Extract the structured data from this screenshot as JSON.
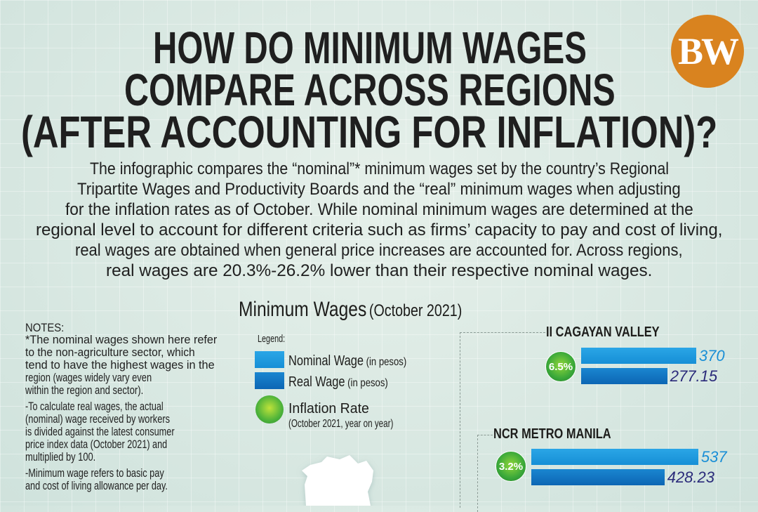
{
  "title_lines": [
    "HOW DO MINIMUM WAGES",
    "COMPARE ACROSS REGIONS",
    "(AFTER ACCOUNTING FOR INFLATION)?"
  ],
  "logo_text": "BW",
  "intro_lines": [
    "The infographic compares the “nominal”* minimum wages set by the country’s Regional",
    "Tripartite Wages and Productivity Boards and the “real” minimum wages when adjusting",
    "for the inflation rates as of October. While nominal minimum wages are determined at the",
    "regional level to account for different criteria such as firms’ capacity to pay and cost of living,",
    "real wages are obtained when general price increases are accounted for. Across regions,",
    "real wages are 20.3%-26.2% lower than their respective nominal wages."
  ],
  "notes": {
    "heading": "NOTES:",
    "lines": [
      "*The nominal wages shown here refer",
      "to the non-agriculture sector, which",
      "tend to have the highest wages in the",
      "region (wages widely vary even",
      "within the region and sector).",
      "-To calculate real wages, the actual",
      "(nominal) wage received by workers",
      "is divided against the latest consumer",
      "price index data (October 2021) and",
      "multiplied by 100.",
      "-Minimum wage refers to basic pay",
      "and cost of living allowance per day."
    ]
  },
  "chart_data": {
    "type": "bar",
    "title": "Minimum Wages",
    "subtitle": "(October 2021)",
    "legend": {
      "heading": "Legend:",
      "nominal": {
        "label": "Nominal Wage",
        "unit": "(in pesos)",
        "color": "#1e9be0"
      },
      "real": {
        "label": "Real Wage",
        "unit": "(in pesos)",
        "color": "#0f72bf"
      },
      "inflation": {
        "label": "Inflation Rate",
        "note": "(October 2021, year on year)",
        "color": "#4db33a"
      }
    },
    "categories": [
      "II CAGAYAN VALLEY",
      "NCR METRO MANILA"
    ],
    "series": [
      {
        "name": "Nominal Wage",
        "values": [
          370,
          537
        ]
      },
      {
        "name": "Real Wage",
        "values": [
          277.15,
          428.23
        ]
      }
    ],
    "inflation_rate": [
      "6.5%",
      "3.2%"
    ],
    "value_labels": {
      "nominal": [
        "370",
        "537"
      ],
      "real": [
        "277.15",
        "428.23"
      ]
    }
  }
}
